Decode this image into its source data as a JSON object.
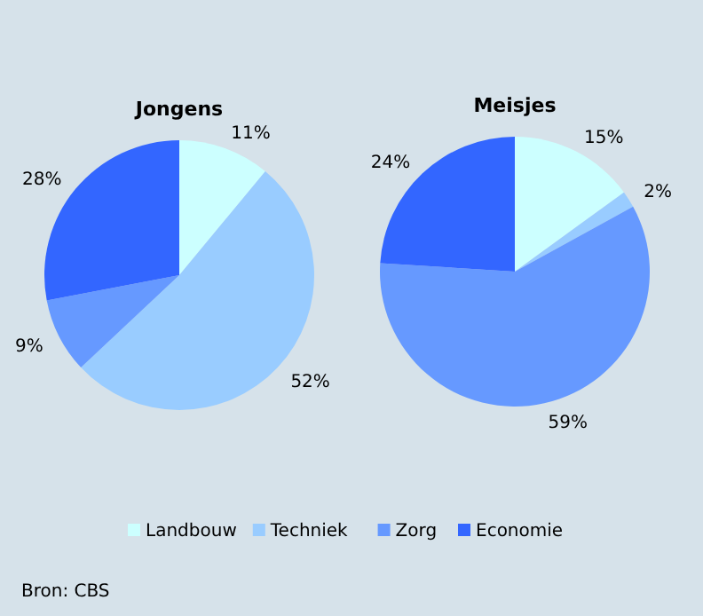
{
  "chart_data": [
    {
      "type": "pie",
      "title": "Jongens",
      "categories": [
        "Landbouw",
        "Techniek",
        "Zorg",
        "Economie"
      ],
      "values": [
        11,
        52,
        9,
        28
      ],
      "value_labels": [
        "11%",
        "52%",
        "9%",
        "28%"
      ],
      "colors": [
        "#ccffff",
        "#99ccff",
        "#6699ff",
        "#3366ff"
      ],
      "legend": "bottom",
      "annotations": [
        "Bron: CBS"
      ]
    },
    {
      "type": "pie",
      "title": "Meisjes",
      "values": [
        15,
        2,
        59,
        24
      ],
      "value_labels": [
        "15%",
        "2%",
        "59%",
        "24%"
      ],
      "colors": [
        "#ccffff",
        "#99ccff",
        "#6699ff",
        "#3366ff"
      ]
    }
  ]
}
